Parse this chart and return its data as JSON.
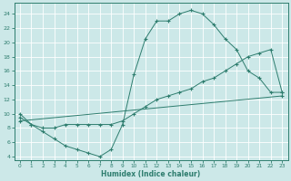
{
  "xlabel": "Humidex (Indice chaleur)",
  "bg_color": "#cce8e8",
  "line_color": "#2e7d6e",
  "xlim": [
    -0.5,
    23.5
  ],
  "ylim": [
    3.5,
    25.5
  ],
  "yticks": [
    4,
    6,
    8,
    10,
    12,
    14,
    16,
    18,
    20,
    22,
    24
  ],
  "xticks": [
    0,
    1,
    2,
    3,
    4,
    5,
    6,
    7,
    8,
    9,
    10,
    11,
    12,
    13,
    14,
    15,
    16,
    17,
    18,
    19,
    20,
    21,
    22,
    23
  ],
  "line1_x": [
    0,
    1,
    2,
    3,
    4,
    5,
    6,
    7,
    8,
    9,
    10,
    11,
    12,
    13,
    14,
    15,
    16,
    17,
    18,
    19,
    20,
    21,
    22,
    23
  ],
  "line1_y": [
    10,
    8.5,
    7.5,
    6.5,
    5.5,
    5.0,
    4.5,
    4.0,
    5.0,
    8.5,
    15.5,
    20.5,
    23.0,
    23.0,
    24.0,
    24.5,
    24.0,
    22.5,
    20.5,
    19.0,
    16.0,
    15.0,
    13.0,
    13.0
  ],
  "line2_x": [
    0,
    1,
    2,
    3,
    4,
    5,
    6,
    7,
    8,
    9,
    10,
    11,
    12,
    13,
    14,
    15,
    16,
    17,
    18,
    19,
    20,
    21,
    22,
    23
  ],
  "line2_y": [
    9.5,
    8.5,
    8.0,
    8.0,
    8.5,
    8.5,
    8.5,
    8.5,
    8.5,
    9.0,
    10.0,
    11.0,
    12.0,
    12.5,
    13.0,
    13.5,
    14.5,
    15.0,
    16.0,
    17.0,
    18.0,
    18.5,
    19.0,
    13.0
  ],
  "line3_x": [
    0,
    23
  ],
  "line3_y": [
    9.0,
    12.5
  ]
}
